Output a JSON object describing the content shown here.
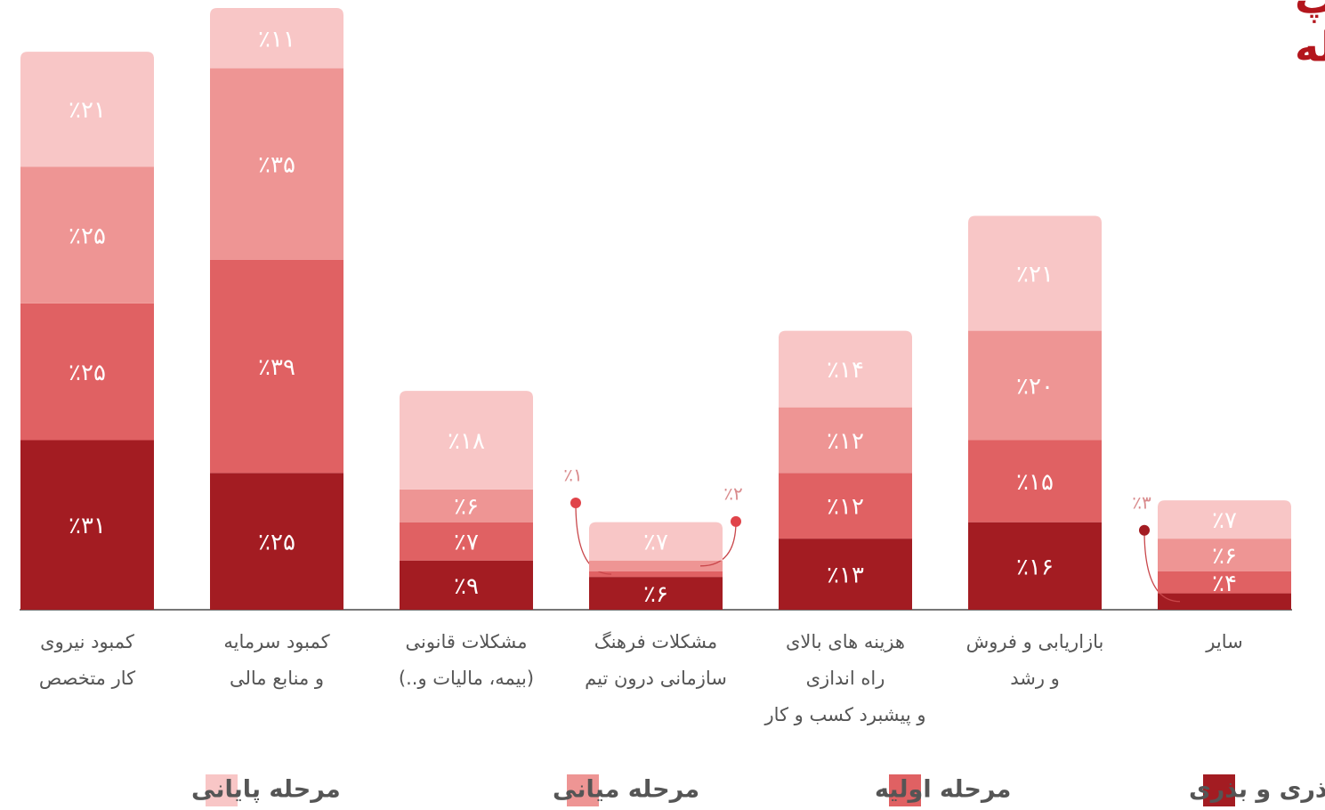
{
  "chart_data": {
    "type": "stacked_bar",
    "title": [
      "چالش شرکت یا استارت آپ",
      "بـــه تفکیـــک مـــرحله"
    ],
    "categories": [
      [
        "کمبود نیروی",
        "کار متخصص"
      ],
      [
        "کمبود سرمایه",
        "و منابع مالی"
      ],
      [
        "مشکلات قانونی",
        "(بیمه، مالیات و..)"
      ],
      [
        "مشکلات فرهنگ",
        "سازمانی درون تیم"
      ],
      [
        "هزینه های بالای",
        "راه اندازی",
        "و پیشبرد کسب و کار"
      ],
      [
        "بازاریابی و فروش",
        "و رشد"
      ],
      [
        "سایر"
      ]
    ],
    "ylim": [
      0,
      110
    ],
    "series": [
      {
        "name": "پیش بذری و بذری",
        "color": "#a31c22",
        "values": [
          31,
          25,
          9,
          6,
          13,
          16,
          3
        ],
        "value_labels": [
          "٪۳۱",
          "٪۲۵",
          "٪۹",
          "٪۶",
          "٪۱۳",
          "٪۱۶",
          "٪۳"
        ]
      },
      {
        "name": "مرحله اولیه",
        "color": "#e06163",
        "values": [
          25,
          39,
          7,
          1,
          12,
          15,
          4
        ],
        "value_labels": [
          "٪۲۵",
          "٪۳۹",
          "٪۷",
          "٪۱",
          "٪۱۲",
          "٪۱۵",
          "٪۴"
        ]
      },
      {
        "name": "مرحله میانی",
        "color": "#ee9594",
        "values": [
          25,
          35,
          6,
          2,
          12,
          20,
          6
        ],
        "value_labels": [
          "٪۲۵",
          "٪۳۵",
          "٪۶",
          "٪۲",
          "٪۱۲",
          "٪۲۰",
          "٪۶"
        ]
      },
      {
        "name": "مرحله پایانی",
        "color": "#f8c6c6",
        "values": [
          21,
          11,
          18,
          7,
          14,
          21,
          7
        ],
        "value_labels": [
          "٪۲۱",
          "٪۱۱",
          "٪۱۸",
          "٪۷",
          "٪۱۴",
          "٪۲۱",
          "٪۷"
        ]
      }
    ]
  }
}
